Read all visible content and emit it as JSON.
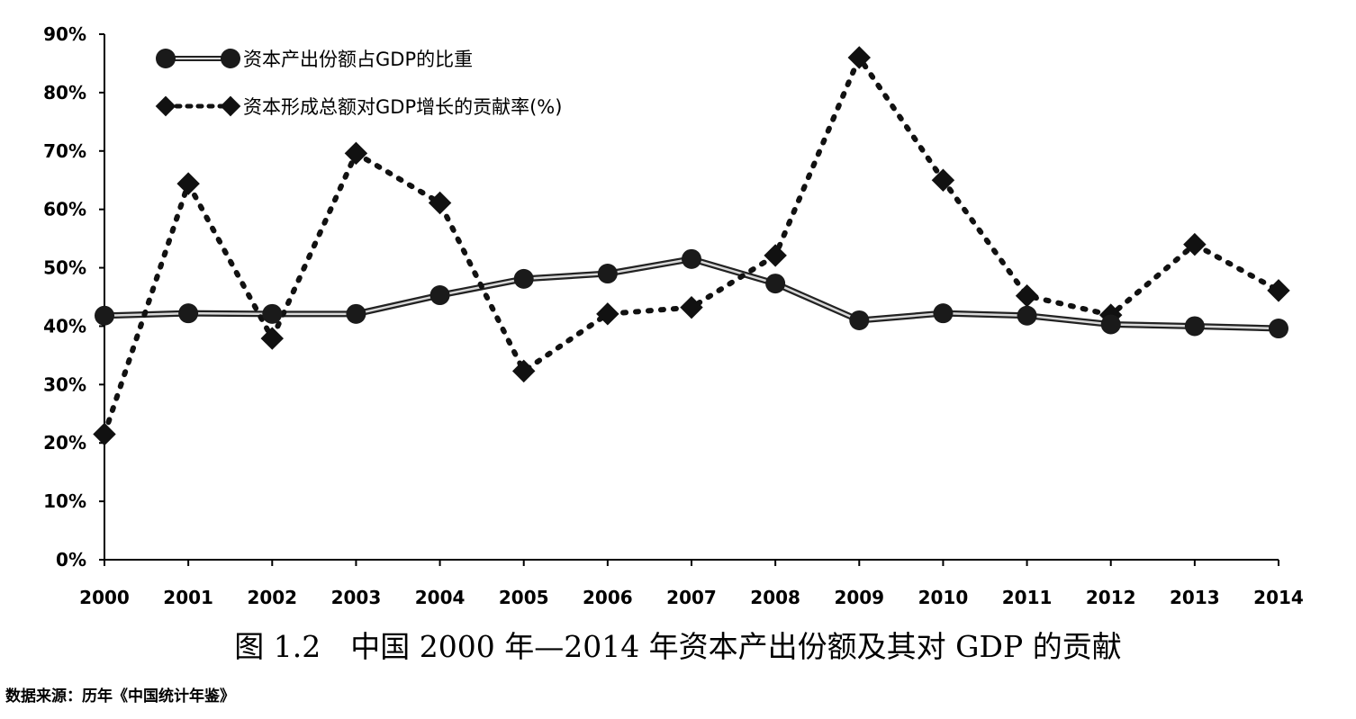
{
  "caption": "图 1.2　中国 2000 年—2014 年资本产出份额及其对 GDP 的贡献",
  "source": "数据来源：历年《中国统计年鉴》",
  "chart_data": {
    "type": "line",
    "title": "",
    "xlabel": "",
    "ylabel": "",
    "ylim": [
      0,
      90
    ],
    "y_ticks": [
      "0%",
      "10%",
      "20%",
      "30%",
      "40%",
      "50%",
      "60%",
      "70%",
      "80%",
      "90%"
    ],
    "x": [
      "2000",
      "2001",
      "2002",
      "2003",
      "2004",
      "2005",
      "2006",
      "2007",
      "2008",
      "2009",
      "2010",
      "2011",
      "2012",
      "2013",
      "2014"
    ],
    "grid": false,
    "legend_position": "top-left",
    "series": [
      {
        "name": "资本产出份额占GDP的比重",
        "style": "solid-double-line-circle-markers",
        "color": "#222222",
        "values": [
          41.8,
          42.2,
          42.1,
          42.1,
          45.3,
          48.1,
          49.0,
          51.5,
          47.3,
          41.0,
          42.2,
          41.8,
          40.3,
          40.0,
          39.6
        ]
      },
      {
        "name": "资本形成总额对GDP增长的贡献率(%)",
        "style": "dotted-line-diamond-markers",
        "color": "#111111",
        "values": [
          21.5,
          64.4,
          37.9,
          69.6,
          61.1,
          32.3,
          42.1,
          43.2,
          52.1,
          86.0,
          65.0,
          45.2,
          41.9,
          54.0,
          46.1
        ]
      }
    ]
  }
}
